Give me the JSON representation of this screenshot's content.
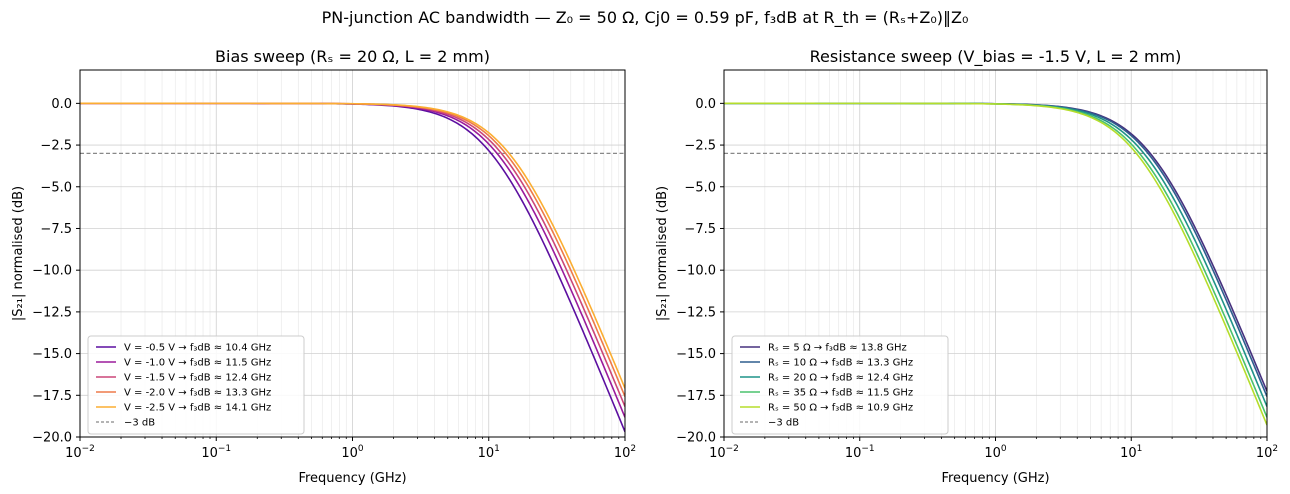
{
  "figure": {
    "suptitle": "PN-junction AC bandwidth  —  Z₀ = 50 Ω,  Cj0 = 0.59 pF,  f₃dB at R_th = (Rₛ+Z₀)‖Z₀"
  },
  "chart_data": [
    {
      "type": "line",
      "title": "Bias sweep  (Rₛ = 20 Ω, L = 2 mm)",
      "xlabel": "Frequency (GHz)",
      "ylabel": "|S₂₁| normalised (dB)",
      "xscale": "log",
      "xlim": [
        0.01,
        100
      ],
      "ylim": [
        -20,
        2
      ],
      "xticks": [
        {
          "base": "10",
          "exp": "−2"
        },
        {
          "base": "10",
          "exp": "−1"
        },
        {
          "base": "10",
          "exp": "0"
        },
        {
          "base": "10",
          "exp": "1"
        },
        {
          "base": "10",
          "exp": "2"
        }
      ],
      "yticks": [
        "0.0",
        "−2.5",
        "−5.0",
        "−7.5",
        "−10.0",
        "−12.5",
        "−15.0",
        "−17.5",
        "−20.0"
      ],
      "yticks_values": [
        0,
        -2.5,
        -5,
        -7.5,
        -10,
        -12.5,
        -15,
        -17.5,
        -20
      ],
      "grid": true,
      "legend_position": "lower-left",
      "reference_line": {
        "y": -3,
        "label": "−3 dB",
        "color": "#888888"
      },
      "series": [
        {
          "name": "V = -0.5 V  →  f₃dB ≈ 10.4 GHz",
          "f3db": 10.4,
          "color": "#5c0fa0"
        },
        {
          "name": "V = -1.0 V  →  f₃dB ≈ 11.5 GHz",
          "f3db": 11.5,
          "color": "#9b1b9c"
        },
        {
          "name": "V = -1.5 V  →  f₃dB ≈ 12.4 GHz",
          "f3db": 12.4,
          "color": "#cc4778"
        },
        {
          "name": "V = -2.0 V  →  f₃dB ≈ 13.3 GHz",
          "f3db": 13.3,
          "color": "#ee7a4a"
        },
        {
          "name": "V = -2.5 V  →  f₃dB ≈ 14.1 GHz",
          "f3db": 14.1,
          "color": "#fbae32"
        }
      ]
    },
    {
      "type": "line",
      "title": "Resistance sweep  (V_bias = -1.5 V, L = 2 mm)",
      "xlabel": "Frequency (GHz)",
      "ylabel": "|S₂₁| normalised (dB)",
      "xscale": "log",
      "xlim": [
        0.01,
        100
      ],
      "ylim": [
        -20,
        2
      ],
      "xticks": [
        {
          "base": "10",
          "exp": "−2"
        },
        {
          "base": "10",
          "exp": "−1"
        },
        {
          "base": "10",
          "exp": "0"
        },
        {
          "base": "10",
          "exp": "1"
        },
        {
          "base": "10",
          "exp": "2"
        }
      ],
      "yticks": [
        "0.0",
        "−2.5",
        "−5.0",
        "−7.5",
        "−10.0",
        "−12.5",
        "−15.0",
        "−17.5",
        "−20.0"
      ],
      "yticks_values": [
        0,
        -2.5,
        -5,
        -7.5,
        -10,
        -12.5,
        -15,
        -17.5,
        -20
      ],
      "grid": true,
      "legend_position": "lower-left",
      "reference_line": {
        "y": -3,
        "label": "−3 dB",
        "color": "#888888"
      },
      "series": [
        {
          "name": "Rₛ = 5 Ω  →  f₃dB ≈ 13.8 GHz",
          "f3db": 13.8,
          "color": "#46317e"
        },
        {
          "name": "Rₛ = 10 Ω  →  f₃dB ≈ 13.3 GHz",
          "f3db": 13.3,
          "color": "#2f5e8e"
        },
        {
          "name": "Rₛ = 20 Ω  →  f₃dB ≈ 12.4 GHz",
          "f3db": 12.4,
          "color": "#1f9388"
        },
        {
          "name": "Rₛ = 35 Ω  →  f₃dB ≈ 11.5 GHz",
          "f3db": 11.5,
          "color": "#4ac26d"
        },
        {
          "name": "Rₛ = 50 Ω  →  f₃dB ≈ 10.9 GHz",
          "f3db": 10.9,
          "color": "#b5dd2b"
        }
      ]
    }
  ]
}
